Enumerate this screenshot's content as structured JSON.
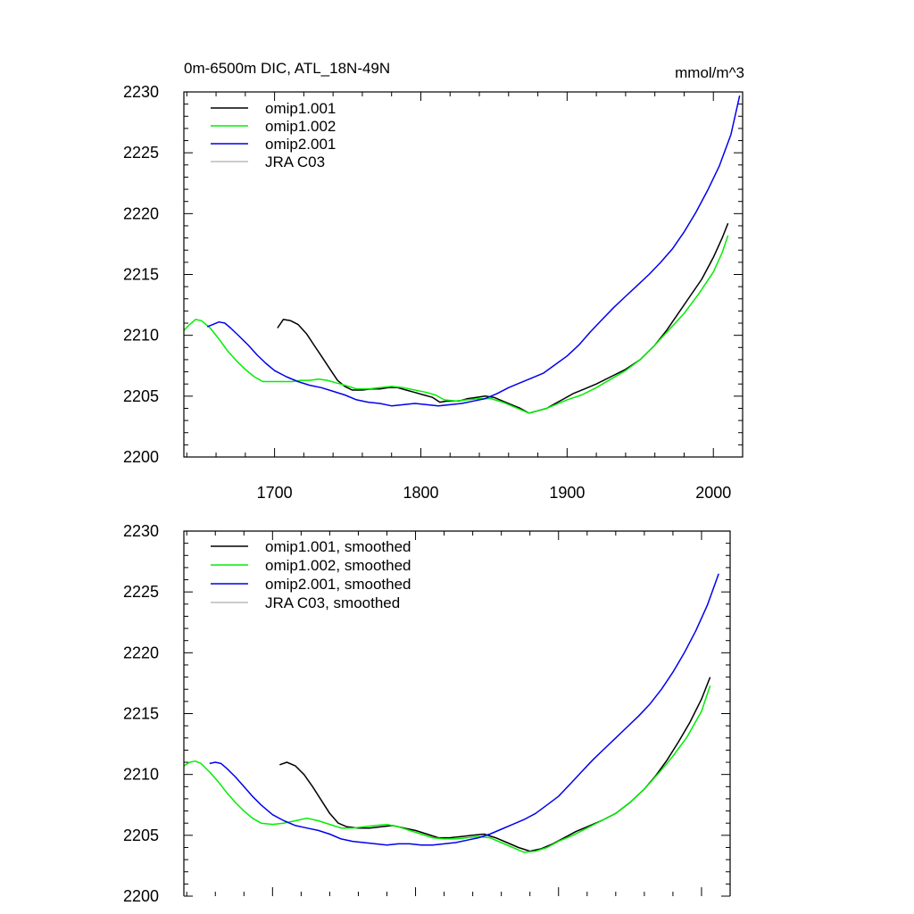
{
  "chart_data": [
    {
      "type": "line",
      "title": "0m-6500m DIC, ATL_18N-49N",
      "units": "mmol/m^3",
      "xlim": [
        1638,
        2020
      ],
      "ylim": [
        2200,
        2230
      ],
      "xticks": [
        1700,
        1800,
        1900,
        2000
      ],
      "yticks": [
        2200,
        2205,
        2210,
        2215,
        2220,
        2225,
        2230
      ],
      "legend_position": "top-left",
      "series": [
        {
          "name": "omip1.001",
          "color": "#000000",
          "x": [
            1702,
            1706,
            1711,
            1716,
            1722,
            1727,
            1732,
            1738,
            1743,
            1748,
            1753,
            1760,
            1766,
            1772,
            1778,
            1784,
            1790,
            1796,
            1802,
            1808,
            1813,
            1818,
            1826,
            1832,
            1838,
            1844,
            1850,
            1856,
            1862,
            1868,
            1874,
            1880,
            1886,
            1892,
            1898,
            1904,
            1912,
            1920,
            1930,
            1940,
            1950,
            1960,
            1968,
            1976,
            1984,
            1992,
            2000,
            2006,
            2010
          ],
          "y": [
            2210.6,
            2211.3,
            2211.2,
            2210.9,
            2210.1,
            2209.2,
            2208.3,
            2207.2,
            2206.3,
            2205.8,
            2205.5,
            2205.5,
            2205.6,
            2205.6,
            2205.7,
            2205.7,
            2205.5,
            2205.3,
            2205.1,
            2204.9,
            2204.5,
            2204.6,
            2204.6,
            2204.8,
            2204.9,
            2205.0,
            2204.9,
            2204.6,
            2204.3,
            2204.0,
            2203.6,
            2203.8,
            2204.0,
            2204.4,
            2204.8,
            2205.2,
            2205.6,
            2206.0,
            2206.6,
            2207.2,
            2208.0,
            2209.2,
            2210.4,
            2211.8,
            2213.2,
            2214.6,
            2216.4,
            2218.0,
            2219.2
          ]
        },
        {
          "name": "omip1.002",
          "color": "#00ee00",
          "x": [
            1638,
            1642,
            1646,
            1650,
            1656,
            1662,
            1668,
            1674,
            1680,
            1686,
            1692,
            1698,
            1704,
            1712,
            1718,
            1724,
            1730,
            1736,
            1742,
            1748,
            1756,
            1764,
            1772,
            1780,
            1788,
            1796,
            1804,
            1810,
            1816,
            1824,
            1832,
            1840,
            1848,
            1856,
            1862,
            1868,
            1874,
            1880,
            1886,
            1892,
            1900,
            1910,
            1920,
            1930,
            1940,
            1950,
            1960,
            1970,
            1980,
            1990,
            2000,
            2006,
            2010
          ],
          "y": [
            2210.4,
            2210.9,
            2211.3,
            2211.2,
            2210.6,
            2209.7,
            2208.7,
            2207.9,
            2207.2,
            2206.6,
            2206.2,
            2206.2,
            2206.2,
            2206.2,
            2206.3,
            2206.3,
            2206.4,
            2206.3,
            2206.1,
            2205.9,
            2205.6,
            2205.6,
            2205.7,
            2205.8,
            2205.7,
            2205.5,
            2205.3,
            2205.1,
            2204.7,
            2204.6,
            2204.7,
            2204.8,
            2204.8,
            2204.5,
            2204.2,
            2203.9,
            2203.6,
            2203.8,
            2204.0,
            2204.3,
            2204.7,
            2205.1,
            2205.7,
            2206.4,
            2207.1,
            2208.0,
            2209.2,
            2210.5,
            2211.8,
            2213.4,
            2215.2,
            2216.8,
            2218.2
          ]
        },
        {
          "name": "omip2.001",
          "color": "#0000ee",
          "x": [
            1654,
            1658,
            1662,
            1666,
            1670,
            1676,
            1682,
            1688,
            1694,
            1700,
            1708,
            1716,
            1724,
            1732,
            1740,
            1748,
            1756,
            1764,
            1772,
            1780,
            1788,
            1796,
            1804,
            1812,
            1820,
            1828,
            1836,
            1844,
            1852,
            1860,
            1868,
            1876,
            1884,
            1892,
            1900,
            1908,
            1916,
            1924,
            1932,
            1940,
            1948,
            1956,
            1964,
            1972,
            1980,
            1988,
            1996,
            2004,
            2012,
            2018
          ],
          "y": [
            2210.7,
            2210.9,
            2211.1,
            2211.0,
            2210.6,
            2209.9,
            2209.2,
            2208.4,
            2207.7,
            2207.1,
            2206.6,
            2206.2,
            2205.9,
            2205.7,
            2205.4,
            2205.1,
            2204.7,
            2204.5,
            2204.4,
            2204.2,
            2204.3,
            2204.4,
            2204.3,
            2204.2,
            2204.3,
            2204.4,
            2204.6,
            2204.8,
            2205.2,
            2205.7,
            2206.1,
            2206.5,
            2206.9,
            2207.6,
            2208.3,
            2209.2,
            2210.3,
            2211.3,
            2212.3,
            2213.2,
            2214.1,
            2215.0,
            2216.0,
            2217.1,
            2218.5,
            2220.1,
            2221.9,
            2223.9,
            2226.5,
            2229.7
          ]
        },
        {
          "name": "JRA C03",
          "color": "#bbbbbb",
          "x": [],
          "y": []
        }
      ]
    },
    {
      "type": "line",
      "title": "",
      "xlim": [
        1638,
        2020
      ],
      "ylim": [
        2200,
        2230
      ],
      "xticks": [
        1700,
        1800,
        1900,
        2000
      ],
      "yticks": [
        2200,
        2205,
        2210,
        2215,
        2220,
        2225,
        2230
      ],
      "legend_position": "top-left",
      "series": [
        {
          "name": "omip1.001, smoothed",
          "color": "#000000",
          "x": [
            1705,
            1710,
            1716,
            1722,
            1728,
            1734,
            1740,
            1746,
            1752,
            1760,
            1768,
            1776,
            1784,
            1792,
            1800,
            1808,
            1816,
            1824,
            1832,
            1840,
            1848,
            1856,
            1864,
            1872,
            1880,
            1888,
            1896,
            1904,
            1912,
            1920,
            1930,
            1940,
            1950,
            1960,
            1968,
            1976,
            1984,
            1992,
            2000,
            2006
          ],
          "y": [
            2210.8,
            2211.0,
            2210.7,
            2210.0,
            2209.0,
            2207.9,
            2206.8,
            2206.0,
            2205.7,
            2205.6,
            2205.6,
            2205.7,
            2205.8,
            2205.6,
            2205.4,
            2205.1,
            2204.8,
            2204.8,
            2204.9,
            2205.0,
            2205.1,
            2204.8,
            2204.4,
            2204.0,
            2203.7,
            2203.9,
            2204.3,
            2204.8,
            2205.3,
            2205.7,
            2206.2,
            2206.8,
            2207.7,
            2208.8,
            2209.9,
            2211.2,
            2212.7,
            2214.3,
            2216.2,
            2218.0
          ]
        },
        {
          "name": "omip1.002, smoothed",
          "color": "#00ee00",
          "x": [
            1638,
            1642,
            1646,
            1650,
            1656,
            1662,
            1668,
            1674,
            1680,
            1686,
            1692,
            1700,
            1708,
            1716,
            1724,
            1732,
            1740,
            1748,
            1756,
            1764,
            1772,
            1780,
            1788,
            1796,
            1804,
            1812,
            1820,
            1828,
            1836,
            1844,
            1852,
            1860,
            1868,
            1876,
            1884,
            1892,
            1900,
            1910,
            1920,
            1930,
            1940,
            1950,
            1960,
            1970,
            1980,
            1990,
            2000,
            2006
          ],
          "y": [
            2210.7,
            2211.0,
            2211.1,
            2210.9,
            2210.2,
            2209.4,
            2208.5,
            2207.7,
            2207.0,
            2206.4,
            2206.0,
            2205.9,
            2206.0,
            2206.2,
            2206.4,
            2206.2,
            2205.9,
            2205.6,
            2205.6,
            2205.7,
            2205.8,
            2205.9,
            2205.7,
            2205.4,
            2205.1,
            2204.8,
            2204.7,
            2204.7,
            2204.8,
            2204.9,
            2204.8,
            2204.4,
            2204.0,
            2203.6,
            2203.7,
            2204.0,
            2204.5,
            2205.0,
            2205.6,
            2206.2,
            2206.8,
            2207.7,
            2208.8,
            2210.1,
            2211.5,
            2213.1,
            2215.2,
            2217.3
          ]
        },
        {
          "name": "omip2.001, smoothed",
          "color": "#0000ee",
          "x": [
            1656,
            1660,
            1664,
            1668,
            1674,
            1680,
            1686,
            1692,
            1700,
            1708,
            1716,
            1724,
            1732,
            1740,
            1748,
            1756,
            1764,
            1772,
            1780,
            1788,
            1796,
            1804,
            1812,
            1820,
            1828,
            1836,
            1844,
            1852,
            1860,
            1868,
            1876,
            1884,
            1892,
            1900,
            1908,
            1916,
            1924,
            1932,
            1940,
            1948,
            1956,
            1964,
            1972,
            1980,
            1988,
            1996,
            2004,
            2012
          ],
          "y": [
            2210.9,
            2211.0,
            2210.9,
            2210.5,
            2209.8,
            2209.0,
            2208.2,
            2207.5,
            2206.7,
            2206.2,
            2205.8,
            2205.6,
            2205.4,
            2205.1,
            2204.7,
            2204.5,
            2204.4,
            2204.3,
            2204.2,
            2204.3,
            2204.3,
            2204.2,
            2204.2,
            2204.3,
            2204.4,
            2204.6,
            2204.8,
            2205.1,
            2205.5,
            2205.9,
            2206.3,
            2206.8,
            2207.5,
            2208.2,
            2209.2,
            2210.2,
            2211.2,
            2212.1,
            2213.0,
            2213.9,
            2214.8,
            2215.8,
            2217.0,
            2218.4,
            2220.0,
            2221.8,
            2223.9,
            2226.5
          ]
        },
        {
          "name": "JRA C03, smoothed",
          "color": "#bbbbbb",
          "x": [],
          "y": []
        }
      ]
    }
  ]
}
